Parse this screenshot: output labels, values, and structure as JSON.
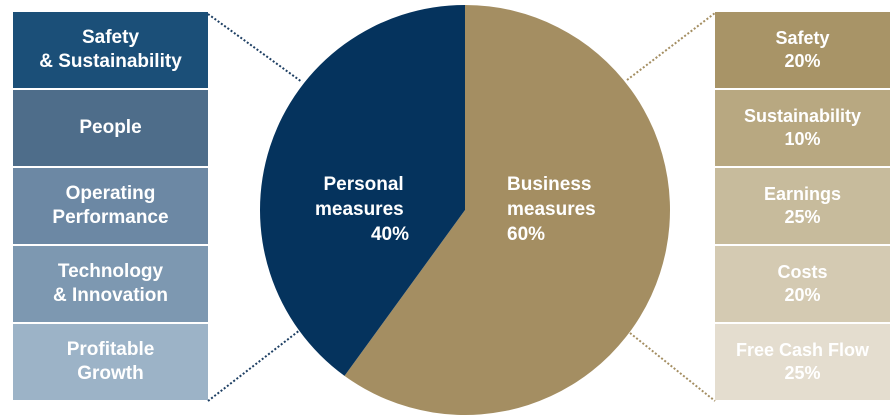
{
  "chart_data": {
    "type": "pie",
    "slices": [
      {
        "label": "Personal measures",
        "value": 40,
        "display": "40%",
        "color": "#05335d"
      },
      {
        "label": "Business measures",
        "value": 60,
        "display": "60%",
        "color": "#a48e62"
      }
    ]
  },
  "personal_slice": {
    "line1": "Personal",
    "line2": "measures",
    "line3": "40%"
  },
  "business_slice": {
    "line1": "Business",
    "line2": "measures",
    "line3": "60%"
  },
  "personal_measures": [
    {
      "label": "Safety\n& Sustainability",
      "color": "#1b4f78"
    },
    {
      "label": "People",
      "color": "#4e6d8a"
    },
    {
      "label": "Operating\nPerformance",
      "color": "#6c88a4"
    },
    {
      "label": "Technology\n& Innovation",
      "color": "#7d98b1"
    },
    {
      "label": "Profitable\nGrowth",
      "color": "#9cb3c7"
    }
  ],
  "business_measures": [
    {
      "label": "Safety",
      "weight": "20%",
      "color": "#a89467"
    },
    {
      "label": "Sustainability",
      "weight": "10%",
      "color": "#b8a881"
    },
    {
      "label": "Earnings",
      "weight": "25%",
      "color": "#c7bb9c"
    },
    {
      "label": "Costs",
      "weight": "20%",
      "color": "#d4cab2"
    },
    {
      "label": "Free Cash Flow",
      "weight": "25%",
      "color": "#e4ddcf"
    }
  ]
}
